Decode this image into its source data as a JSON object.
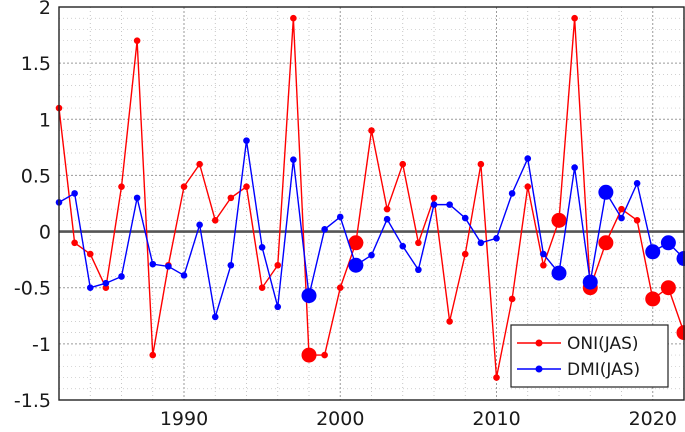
{
  "chart_data": {
    "type": "line",
    "x": [
      1982,
      1983,
      1984,
      1985,
      1986,
      1987,
      1988,
      1989,
      1990,
      1991,
      1992,
      1993,
      1994,
      1995,
      1996,
      1997,
      1998,
      1999,
      2000,
      2001,
      2002,
      2003,
      2004,
      2005,
      2006,
      2007,
      2008,
      2009,
      2010,
      2011,
      2012,
      2013,
      2014,
      2015,
      2016,
      2017,
      2018,
      2019,
      2020,
      2021,
      2022
    ],
    "xlim": [
      1982,
      2022
    ],
    "ylim": [
      -1.5,
      2
    ],
    "xticks": [
      1990,
      2000,
      2010,
      2020
    ],
    "yticks": [
      2,
      1.5,
      1,
      0.5,
      0,
      -0.5,
      -1,
      -1.5
    ],
    "ytick_labels": [
      "2",
      "1.5",
      "1",
      "0.5",
      "0",
      "-0.5",
      "-1",
      "-1.5"
    ],
    "grid": "dotted",
    "zero_line": true,
    "legend_position": "bottom-right",
    "series": [
      {
        "name": "ONI(JAS)",
        "color": "#ff0000",
        "values": [
          1.1,
          -0.1,
          -0.2,
          -0.5,
          0.4,
          1.7,
          -1.1,
          -0.3,
          0.4,
          0.6,
          0.1,
          0.3,
          0.4,
          -0.5,
          -0.3,
          1.9,
          -1.1,
          -1.1,
          -0.5,
          -0.1,
          0.9,
          0.2,
          0.6,
          -0.1,
          0.3,
          -0.8,
          -0.2,
          0.6,
          -1.3,
          -0.6,
          0.4,
          -0.3,
          0.1,
          1.9,
          -0.5,
          -0.1,
          0.2,
          0.1,
          -0.6,
          -0.5,
          -0.9
        ],
        "highlighted_years": [
          1998,
          2001,
          2014,
          2016,
          2017,
          2020,
          2021,
          2022
        ]
      },
      {
        "name": "DMI(JAS)",
        "color": "#0000ff",
        "values": [
          0.26,
          0.34,
          -0.5,
          -0.46,
          -0.4,
          0.3,
          -0.29,
          -0.31,
          -0.39,
          0.06,
          -0.76,
          -0.3,
          0.81,
          -0.14,
          -0.67,
          0.64,
          -0.57,
          0.02,
          0.13,
          -0.3,
          -0.21,
          0.11,
          -0.13,
          -0.34,
          0.24,
          0.24,
          0.12,
          -0.1,
          -0.06,
          0.34,
          0.65,
          -0.2,
          -0.37,
          0.57,
          -0.45,
          0.35,
          0.12,
          0.43,
          -0.18,
          -0.1,
          -0.24
        ],
        "highlighted_years": [
          1998,
          2001,
          2014,
          2016,
          2017,
          2020,
          2021,
          2022
        ]
      }
    ]
  }
}
